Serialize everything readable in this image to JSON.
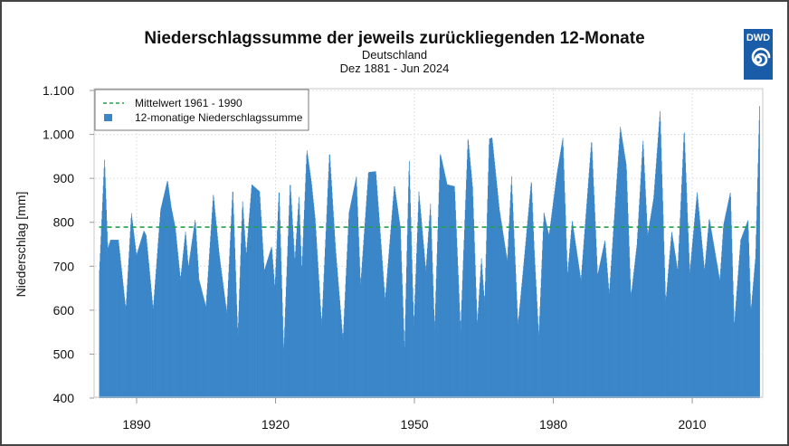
{
  "chart_data": {
    "type": "bar",
    "title": "Niederschlagssumme der jeweils zurückliegenden 12-Monate",
    "subtitle": "Deutschland",
    "period": "Dez 1881 - Jun 2024",
    "xlabel": "",
    "ylabel": "Niederschlag [mm]",
    "ylim": [
      400,
      1100
    ],
    "xlim": [
      1881.9,
      2024.5
    ],
    "yticks": [
      "400",
      "500",
      "600",
      "700",
      "800",
      "900",
      "1.000",
      "1.100"
    ],
    "ytick_values": [
      400,
      500,
      600,
      700,
      800,
      900,
      1000,
      1100
    ],
    "xticks": [
      "1890",
      "1920",
      "1950",
      "1980",
      "2010"
    ],
    "xtick_values": [
      1890,
      1920,
      1950,
      1980,
      2010
    ],
    "grid": true,
    "legend_position": "top-left",
    "series": [
      {
        "name": "12-monatige Niederschlagssumme",
        "color": "#3a86c8",
        "points": [
          [
            1881.9,
            691
          ],
          [
            1883.0,
            946
          ],
          [
            1883.7,
            740
          ],
          [
            1884.3,
            760
          ],
          [
            1886.0,
            760
          ],
          [
            1887.6,
            602
          ],
          [
            1888.8,
            822
          ],
          [
            1889.9,
            725
          ],
          [
            1891.5,
            781
          ],
          [
            1892.0,
            770
          ],
          [
            1893.5,
            602
          ],
          [
            1895.1,
            828
          ],
          [
            1896.6,
            896
          ],
          [
            1897.4,
            835
          ],
          [
            1898.3,
            787
          ],
          [
            1899.4,
            670
          ],
          [
            1900.5,
            780
          ],
          [
            1901.1,
            698
          ],
          [
            1902.6,
            808
          ],
          [
            1903.4,
            670
          ],
          [
            1904.9,
            608
          ],
          [
            1906.5,
            865
          ],
          [
            1907.8,
            725
          ],
          [
            1909.4,
            595
          ],
          [
            1910.7,
            880
          ],
          [
            1911.8,
            540
          ],
          [
            1912.8,
            850
          ],
          [
            1913.6,
            725
          ],
          [
            1914.8,
            886
          ],
          [
            1916.5,
            870
          ],
          [
            1917.5,
            690
          ],
          [
            1919.1,
            745
          ],
          [
            1919.8,
            650
          ],
          [
            1920.7,
            880
          ],
          [
            1921.7,
            505
          ],
          [
            1923.1,
            894
          ],
          [
            1924.1,
            712
          ],
          [
            1925.0,
            860
          ],
          [
            1925.6,
            690
          ],
          [
            1926.7,
            966
          ],
          [
            1927.7,
            890
          ],
          [
            1928.5,
            808
          ],
          [
            1929.9,
            567
          ],
          [
            1931.6,
            962
          ],
          [
            1932.9,
            740
          ],
          [
            1934.5,
            534
          ],
          [
            1935.8,
            822
          ],
          [
            1937.4,
            904
          ],
          [
            1938.3,
            657
          ],
          [
            1940.0,
            914
          ],
          [
            1941.6,
            916
          ],
          [
            1943.6,
            623
          ],
          [
            1945.6,
            886
          ],
          [
            1946.9,
            787
          ],
          [
            1947.8,
            509
          ],
          [
            1948.8,
            946
          ],
          [
            1949.8,
            561
          ],
          [
            1950.9,
            870
          ],
          [
            1952.4,
            690
          ],
          [
            1953.4,
            842
          ],
          [
            1954.3,
            554
          ],
          [
            1955.5,
            958
          ],
          [
            1957.0,
            886
          ],
          [
            1958.6,
            882
          ],
          [
            1959.9,
            554
          ],
          [
            1961.5,
            993
          ],
          [
            1962.5,
            880
          ],
          [
            1963.5,
            567
          ],
          [
            1964.4,
            718
          ],
          [
            1965.1,
            615
          ],
          [
            1966.1,
            990
          ],
          [
            1966.7,
            993
          ],
          [
            1968.3,
            828
          ],
          [
            1970.0,
            712
          ],
          [
            1970.9,
            904
          ],
          [
            1972.3,
            567
          ],
          [
            1973.6,
            712
          ],
          [
            1975.2,
            897
          ],
          [
            1975.8,
            740
          ],
          [
            1976.8,
            540
          ],
          [
            1977.9,
            822
          ],
          [
            1979.0,
            770
          ],
          [
            1980.7,
            910
          ],
          [
            1982.0,
            993
          ],
          [
            1983.0,
            680
          ],
          [
            1984.0,
            805
          ],
          [
            1985.9,
            668
          ],
          [
            1988.2,
            989
          ],
          [
            1989.5,
            680
          ],
          [
            1991.1,
            760
          ],
          [
            1992.0,
            637
          ],
          [
            1994.4,
            1017
          ],
          [
            1995.7,
            930
          ],
          [
            1996.7,
            630
          ],
          [
            1998.0,
            750
          ],
          [
            1999.3,
            989
          ],
          [
            2000.3,
            770
          ],
          [
            2001.6,
            855
          ],
          [
            2003.0,
            1055
          ],
          [
            2004.2,
            617
          ],
          [
            2005.5,
            780
          ],
          [
            2006.8,
            690
          ],
          [
            2008.2,
            1013
          ],
          [
            2009.4,
            685
          ],
          [
            2011.0,
            870
          ],
          [
            2012.6,
            690
          ],
          [
            2013.6,
            810
          ],
          [
            2015.9,
            668
          ],
          [
            2016.7,
            795
          ],
          [
            2018.2,
            870
          ],
          [
            2019.0,
            565
          ],
          [
            2020.4,
            760
          ],
          [
            2022.0,
            805
          ],
          [
            2022.6,
            597
          ],
          [
            2023.6,
            720
          ],
          [
            2024.5,
            1071
          ]
        ]
      },
      {
        "name": "Mittelwert 1961 - 1990",
        "color": "#22a04a",
        "value": 789
      }
    ]
  },
  "logo": {
    "text": "DWD",
    "color": "#1a5ca8"
  }
}
